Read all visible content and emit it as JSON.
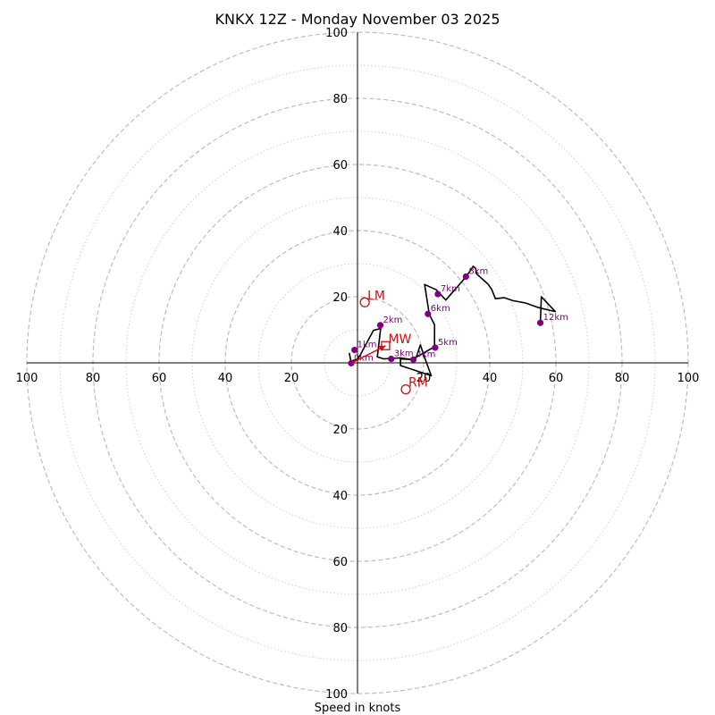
{
  "chart_data": {
    "type": "hodograph",
    "title": "KNKX 12Z - Monday November 03 2025",
    "xlabel": "Speed in knots",
    "units": "knots",
    "ring_max": 100,
    "major_rings": [
      20,
      40,
      60,
      80,
      100
    ],
    "minor_rings": [
      10,
      30,
      50,
      70,
      90
    ],
    "tick_values": [
      20,
      40,
      60,
      80,
      100
    ],
    "x_tick_labels": [
      "100",
      "80",
      "60",
      "40",
      "20",
      "20",
      "40",
      "60",
      "80",
      "100"
    ],
    "y_tick_labels": [
      "100",
      "80",
      "60",
      "40",
      "20",
      "20",
      "40",
      "60",
      "80",
      "100"
    ],
    "wind_trace": [
      [
        -2.5,
        3
      ],
      [
        -2,
        0.5
      ],
      [
        0.2,
        1.2
      ],
      [
        4.8,
        9.8
      ],
      [
        7,
        10.4
      ],
      [
        6,
        1.8
      ],
      [
        8,
        1.2
      ],
      [
        12.8,
        1.5
      ],
      [
        16.5,
        1
      ],
      [
        17.8,
        1.8
      ],
      [
        19,
        5.4
      ],
      [
        20.5,
        1
      ],
      [
        22.3,
        -3.9
      ],
      [
        13,
        -0.8
      ],
      [
        13,
        1.2
      ],
      [
        16.5,
        1
      ],
      [
        23.3,
        4.9
      ],
      [
        23.3,
        11.5
      ],
      [
        21.7,
        14.7
      ],
      [
        20.3,
        23.7
      ],
      [
        23.8,
        22.1
      ],
      [
        26.7,
        19
      ],
      [
        32.8,
        26
      ],
      [
        35,
        29.2
      ],
      [
        35.7,
        28.6
      ],
      [
        36.1,
        26.8
      ],
      [
        39.4,
        23.9
      ],
      [
        40.6,
        22.2
      ],
      [
        41.7,
        19.4
      ],
      [
        44.4,
        19.7
      ],
      [
        47,
        18.8
      ],
      [
        50.8,
        18.1
      ],
      [
        54.4,
        16.8
      ],
      [
        56.4,
        16.3
      ],
      [
        59.8,
        15.5
      ],
      [
        55.6,
        20
      ],
      [
        55.3,
        12.1
      ]
    ],
    "height_markers": [
      {
        "label": "0km",
        "u": -1.9,
        "v": -0.1
      },
      {
        "label": "1km",
        "u": -0.9,
        "v": 3.9
      },
      {
        "label": "2km",
        "u": 6.9,
        "v": 11.4
      },
      {
        "label": "3km",
        "u": 10.2,
        "v": 1.2
      },
      {
        "label": "4km",
        "u": 16.9,
        "v": 1
      },
      {
        "label": "5km",
        "u": 23.5,
        "v": 4.6
      },
      {
        "label": "6km",
        "u": 21.3,
        "v": 14.8
      },
      {
        "label": "7km",
        "u": 24.3,
        "v": 20.8
      },
      {
        "label": "8km",
        "u": 32.8,
        "v": 26.1
      },
      {
        "label": "12km",
        "u": 55.3,
        "v": 12.1
      }
    ],
    "storm_motion": {
      "LM": {
        "label": "LM",
        "u": 2.2,
        "v": 18.3
      },
      "RM": {
        "label": "RM",
        "u": 14.6,
        "v": -8
      },
      "MW": {
        "label": "MW",
        "u": 8.5,
        "v": 5.2
      }
    },
    "shear_vector": {
      "from": [
        -1.9,
        -0.1
      ],
      "to": [
        8.5,
        5.2
      ]
    }
  }
}
